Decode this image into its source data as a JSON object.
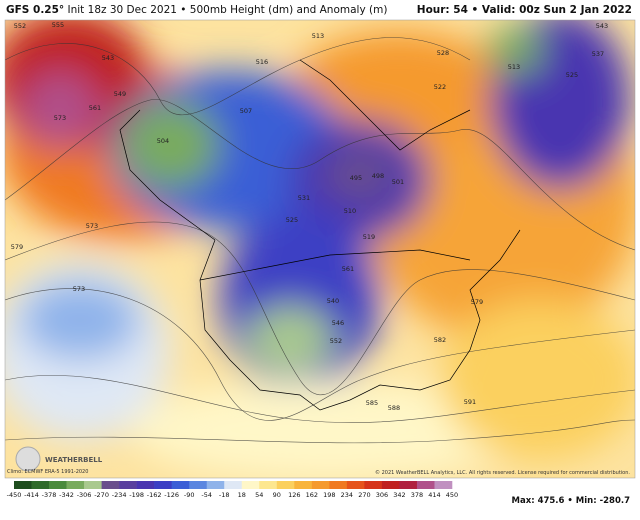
{
  "header": {
    "model": "GFS 0.25°",
    "init": "Init 18z 30 Dec 2021 • 500mb Height (dm) and Anomaly (m)",
    "valid": "Hour: 54 • Valid: 00z Sun 2 Jan 2022"
  },
  "map": {
    "contour_labels": [
      "552",
      "555",
      "543",
      "573",
      "561",
      "549",
      "504",
      "507",
      "516",
      "513",
      "495",
      "498",
      "501",
      "510",
      "519",
      "525",
      "531",
      "573",
      "579",
      "573",
      "540",
      "546",
      "552",
      "561",
      "579",
      "582",
      "585",
      "588",
      "591",
      "513",
      "543",
      "525",
      "528",
      "522",
      "537"
    ],
    "climo": "Climo: ECMWF ERA-5 1991-2020",
    "copyright": "© 2021 WeatherBELL Analytics, LLC. All rights reserved. License required for commercial distribution.",
    "logo": "WEATHERBELL"
  },
  "colorbar": {
    "labels": [
      -450,
      -414,
      -378,
      -342,
      -306,
      -270,
      -234,
      -198,
      -162,
      -126,
      -90,
      -54,
      -18,
      18,
      54,
      90,
      126,
      162,
      198,
      234,
      270,
      306,
      342,
      378,
      414,
      450
    ],
    "colors": [
      "#1e4d1e",
      "#2f6b2a",
      "#4a8a3c",
      "#79ab5e",
      "#a9c98e",
      "#6a4f8c",
      "#5a3f9e",
      "#4a35b0",
      "#3c3fc4",
      "#3b5fd6",
      "#5a86e0",
      "#8fb3ea",
      "#dfe8f5",
      "#fff7c8",
      "#fde78f",
      "#fbd05e",
      "#f8b43c",
      "#f59a2e",
      "#f07a22",
      "#e6541c",
      "#d6341a",
      "#c0201e",
      "#b02040",
      "#b0508a",
      "#c090c0"
    ],
    "maxmin": "Max: 475.6 • Min: -280.7"
  }
}
